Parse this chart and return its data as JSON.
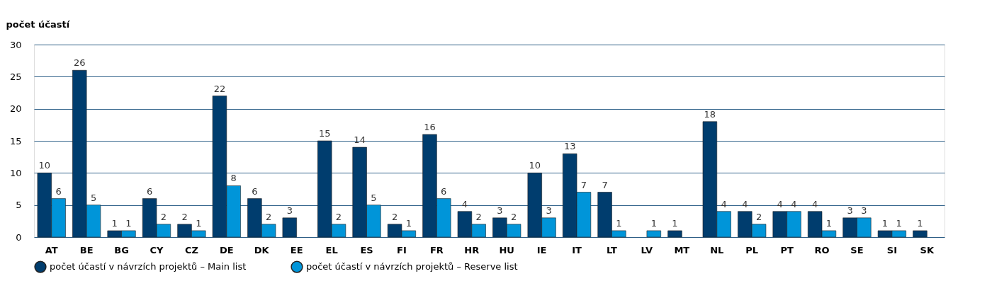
{
  "chart_data": {
    "type": "bar",
    "ylabel": "počet účastí",
    "categories": [
      "AT",
      "BE",
      "BG",
      "CY",
      "CZ",
      "DE",
      "DK",
      "EE",
      "EL",
      "ES",
      "FI",
      "FR",
      "HR",
      "HU",
      "IE",
      "IT",
      "LT",
      "LV",
      "MT",
      "NL",
      "PL",
      "PT",
      "RO",
      "SE",
      "SI",
      "SK"
    ],
    "series": [
      {
        "name": "počet účastí v návrzích projektů – Main list",
        "color": "#003d6e",
        "values": [
          10,
          26,
          1,
          6,
          2,
          22,
          6,
          3,
          15,
          14,
          2,
          16,
          4,
          3,
          10,
          13,
          7,
          null,
          1,
          18,
          4,
          4,
          4,
          3,
          1,
          1
        ]
      },
      {
        "name": "počet účastí v návrzích projektů – Reserve list",
        "color": "#0095d9",
        "values": [
          6,
          5,
          1,
          2,
          1,
          8,
          2,
          null,
          2,
          5,
          1,
          6,
          2,
          2,
          3,
          7,
          1,
          1,
          null,
          4,
          2,
          4,
          1,
          3,
          1,
          null
        ]
      }
    ],
    "ylim": [
      0,
      30
    ],
    "yticks": [
      0,
      5,
      10,
      15,
      20,
      25,
      30
    ],
    "grid": "y",
    "legend": "bottom left",
    "data_labels": true
  }
}
